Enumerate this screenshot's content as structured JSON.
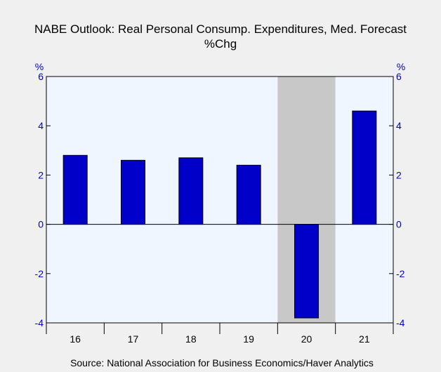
{
  "chart_data": {
    "type": "bar",
    "title": "NABE Outlook: Real Personal Consump. Expenditures, Med. Forecast",
    "subtitle": "%Chg",
    "y_unit_left": "%",
    "y_unit_right": "%",
    "categories": [
      "16",
      "17",
      "18",
      "19",
      "20",
      "21"
    ],
    "values": [
      2.8,
      2.6,
      2.7,
      2.4,
      -3.8,
      4.6
    ],
    "ylim": [
      -4,
      6
    ],
    "yticks": [
      "-4",
      "-2",
      "0",
      "2",
      "4",
      "6"
    ],
    "shaded_category": "20",
    "source": "Source:  National Association for Business Economics/Haver Analytics",
    "colors": {
      "bar": "#0000c8",
      "plot_background": "#f0f6ff",
      "shade": "#c8c8c8",
      "axis_text": "#0000c8"
    }
  }
}
